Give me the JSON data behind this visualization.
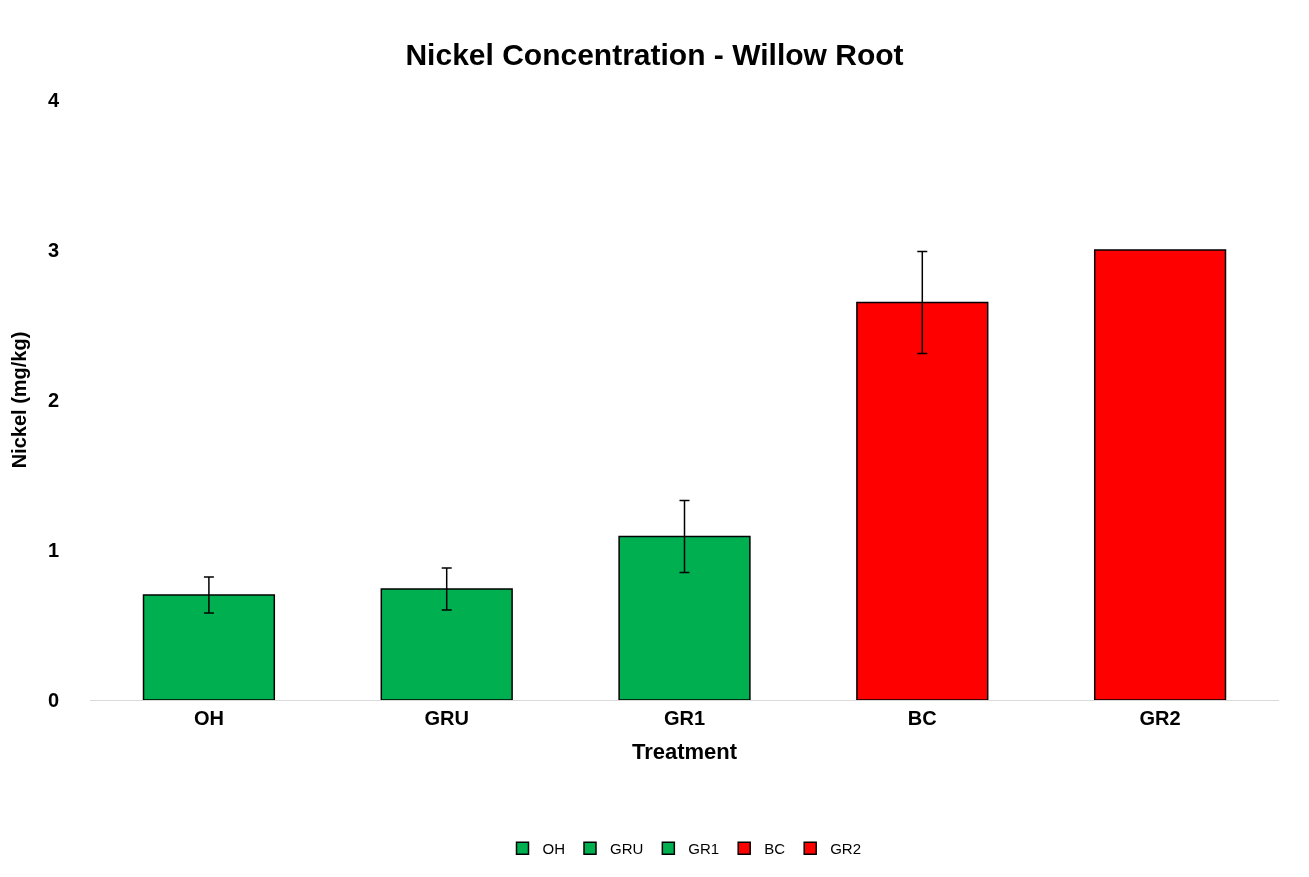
{
  "chart_data": {
    "type": "bar",
    "title": "Nickel Concentration - Willow Root",
    "xlabel": "Treatment",
    "ylabel": "Nickel (mg/kg)",
    "categories": [
      "OH",
      "GRU",
      "GR1",
      "BC",
      "GR2"
    ],
    "stacked": true,
    "series": [
      {
        "name": "OH",
        "color": "#00b050",
        "values": [
          0.7,
          null,
          null,
          null,
          null
        ],
        "errors": [
          0.12,
          null,
          null,
          null,
          null
        ]
      },
      {
        "name": "GRU",
        "color": "#00b050",
        "values": [
          null,
          0.74,
          null,
          null,
          null
        ],
        "errors": [
          null,
          0.14,
          null,
          null,
          null
        ]
      },
      {
        "name": "GR1",
        "color": "#00b050",
        "values": [
          null,
          null,
          1.09,
          null,
          null
        ],
        "errors": [
          null,
          null,
          0.24,
          null,
          null
        ]
      },
      {
        "name": "BC",
        "color": "#ff0000",
        "values": [
          null,
          null,
          null,
          2.65,
          null
        ],
        "errors": [
          null,
          null,
          null,
          0.34,
          null
        ]
      },
      {
        "name": "GR2",
        "color": "#ff0000",
        "values": [
          null,
          null,
          null,
          null,
          3.0
        ]
      }
    ],
    "ylim": [
      0,
      4
    ],
    "yticks": [
      0,
      1,
      2,
      3,
      4
    ],
    "grid": false,
    "legend": "bottom"
  }
}
